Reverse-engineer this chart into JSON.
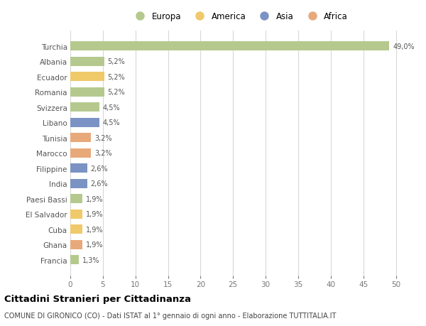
{
  "countries": [
    "Turchia",
    "Albania",
    "Ecuador",
    "Romania",
    "Svizzera",
    "Libano",
    "Tunisia",
    "Marocco",
    "Filippine",
    "India",
    "Paesi Bassi",
    "El Salvador",
    "Cuba",
    "Ghana",
    "Francia"
  ],
  "values": [
    49.0,
    5.2,
    5.2,
    5.2,
    4.5,
    4.5,
    3.2,
    3.2,
    2.6,
    2.6,
    1.9,
    1.9,
    1.9,
    1.9,
    1.3
  ],
  "labels": [
    "49,0%",
    "5,2%",
    "5,2%",
    "5,2%",
    "4,5%",
    "4,5%",
    "3,2%",
    "3,2%",
    "2,6%",
    "2,6%",
    "1,9%",
    "1,9%",
    "1,9%",
    "1,9%",
    "1,3%"
  ],
  "colors": [
    "#b5c98e",
    "#b5c98e",
    "#f0c96a",
    "#b5c98e",
    "#b5c98e",
    "#7b93c4",
    "#e8a97a",
    "#e8a97a",
    "#7b93c4",
    "#7b93c4",
    "#b5c98e",
    "#f0c96a",
    "#f0c96a",
    "#e8a97a",
    "#b5c98e"
  ],
  "legend": [
    {
      "label": "Europa",
      "color": "#b5c98e"
    },
    {
      "label": "America",
      "color": "#f0c96a"
    },
    {
      "label": "Asia",
      "color": "#7b93c4"
    },
    {
      "label": "Africa",
      "color": "#e8a97a"
    }
  ],
  "xlim": [
    0,
    52
  ],
  "xticks": [
    0,
    5,
    10,
    15,
    20,
    25,
    30,
    35,
    40,
    45,
    50
  ],
  "title": "Cittadini Stranieri per Cittadinanza",
  "subtitle": "COMUNE DI GIRONICO (CO) - Dati ISTAT al 1° gennaio di ogni anno - Elaborazione TUTTITALIA.IT",
  "background_color": "#ffffff",
  "grid_color": "#d8d8d8",
  "bar_height": 0.6
}
